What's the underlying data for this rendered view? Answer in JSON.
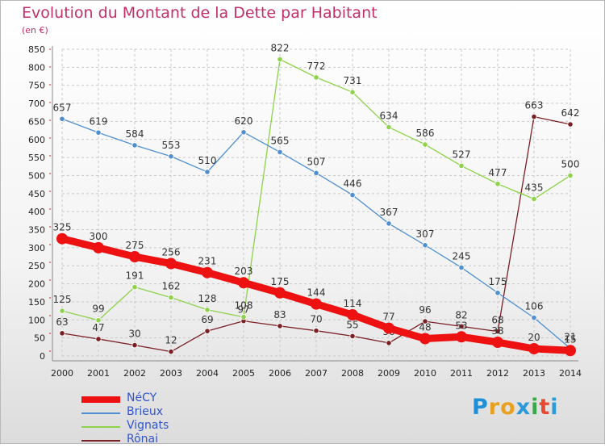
{
  "header": {
    "title": "Evolution du Montant de la Dette par Habitant",
    "subtitle": "(en €)"
  },
  "logo": {
    "text": "Proxiti",
    "letter_colors": [
      "#1f8fd8",
      "#e8a020",
      "#e8a020",
      "#2a9ad8",
      "#3aa84a",
      "#e84830",
      "#2a9ad8"
    ]
  },
  "chart_data": {
    "type": "line",
    "title": "Evolution du Montant de la Dette par Habitant",
    "subtitle": "(en €)",
    "x": [
      "2000",
      "2001",
      "2002",
      "2003",
      "2004",
      "2005",
      "2006",
      "2007",
      "2008",
      "2009",
      "2010",
      "2011",
      "2012",
      "2013",
      "2014"
    ],
    "ylim": [
      0,
      850
    ],
    "yticks": [
      0,
      50,
      100,
      150,
      200,
      250,
      300,
      350,
      400,
      450,
      500,
      550,
      600,
      650,
      700,
      750,
      800,
      850
    ],
    "grid": true,
    "legend_position": "bottom-left",
    "series": [
      {
        "name": "Rônai",
        "color": "#7a1f24",
        "values": [
          63,
          47,
          30,
          12,
          69,
          97,
          83,
          70,
          55,
          36,
          96,
          82,
          68,
          663,
          642
        ],
        "labels": [
          "63",
          "47",
          "30",
          "12",
          "69",
          "97",
          "83",
          "70",
          "55",
          "36",
          "96",
          "82",
          "68",
          "663",
          "642"
        ]
      },
      {
        "name": "Vignats",
        "color": "#8ed14a",
        "values": [
          125,
          99,
          191,
          162,
          128,
          108,
          822,
          772,
          731,
          634,
          586,
          527,
          477,
          435,
          500
        ],
        "labels": [
          "125",
          "99",
          "191",
          "162",
          "128",
          "108",
          "822",
          "772",
          "731",
          "634",
          "586",
          "527",
          "477",
          "435",
          "500"
        ]
      },
      {
        "name": "Brieux",
        "color": "#4f8fcf",
        "values": [
          657,
          619,
          584,
          553,
          510,
          620,
          565,
          507,
          446,
          367,
          307,
          245,
          175,
          106,
          21
        ],
        "labels": [
          "657",
          "619",
          "584",
          "553",
          "510",
          "620",
          "565",
          "507",
          "446",
          "367",
          "307",
          "245",
          "175",
          "106",
          "21"
        ]
      },
      {
        "name": "NéCY",
        "color": "#ee1111",
        "values": [
          325,
          300,
          275,
          256,
          231,
          203,
          175,
          144,
          114,
          77,
          48,
          53,
          38,
          20,
          15
        ],
        "labels": [
          "325",
          "300",
          "275",
          "256",
          "231",
          "203",
          "175",
          "144",
          "114",
          "77",
          "48",
          "53",
          "38",
          "20",
          "15"
        ]
      }
    ]
  },
  "legend": [
    {
      "label": "NéCY",
      "color": "#ee1111"
    },
    {
      "label": "Brieux",
      "color": "#4f8fcf"
    },
    {
      "label": "Vignats",
      "color": "#8ed14a"
    },
    {
      "label": "Rônai",
      "color": "#7a1f24"
    }
  ]
}
